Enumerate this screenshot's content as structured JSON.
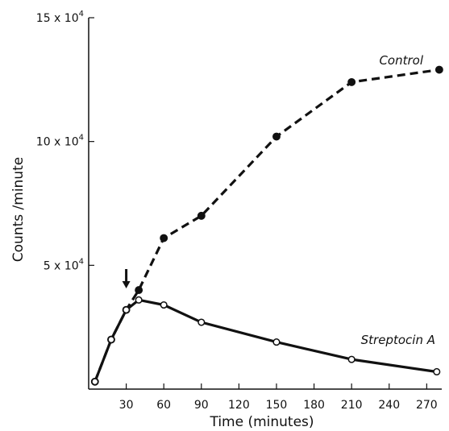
{
  "chart_data": {
    "type": "line",
    "xlabel": "Time (minutes)",
    "ylabel": "Counts /minute",
    "xlim": [
      0,
      282
    ],
    "ylim": [
      0,
      150000
    ],
    "x_ticks": [
      30,
      60,
      90,
      120,
      150,
      180,
      210,
      240,
      270
    ],
    "x_tick_labels": [
      "30",
      "60",
      "90",
      "120",
      "150",
      "180",
      "210",
      "240",
      "270"
    ],
    "y_ticks": [
      {
        "value": 50000,
        "base": "5 x 10",
        "exp": "4"
      },
      {
        "value": 100000,
        "base": "10 x 10",
        "exp": "4"
      },
      {
        "value": 150000,
        "base": "15 x 10",
        "exp": "4"
      }
    ],
    "annotation": {
      "type": "arrow-down",
      "x": 30
    },
    "series": [
      {
        "name": "Control",
        "style": "dashed",
        "marker": "filled",
        "x": [
          5,
          18,
          30,
          40,
          60,
          90,
          150,
          210,
          280
        ],
        "y": [
          3000,
          20000,
          32000,
          40000,
          61000,
          70000,
          102000,
          124000,
          129000
        ]
      },
      {
        "name": "Streptocin A",
        "style": "solid",
        "marker": "open",
        "x": [
          5,
          18,
          30,
          40,
          60,
          90,
          150,
          210,
          278
        ],
        "y": [
          3000,
          20000,
          32000,
          36000,
          34000,
          27000,
          19000,
          12000,
          7000
        ]
      }
    ],
    "colors": {
      "line": "#111111",
      "background": "#ffffff"
    }
  }
}
